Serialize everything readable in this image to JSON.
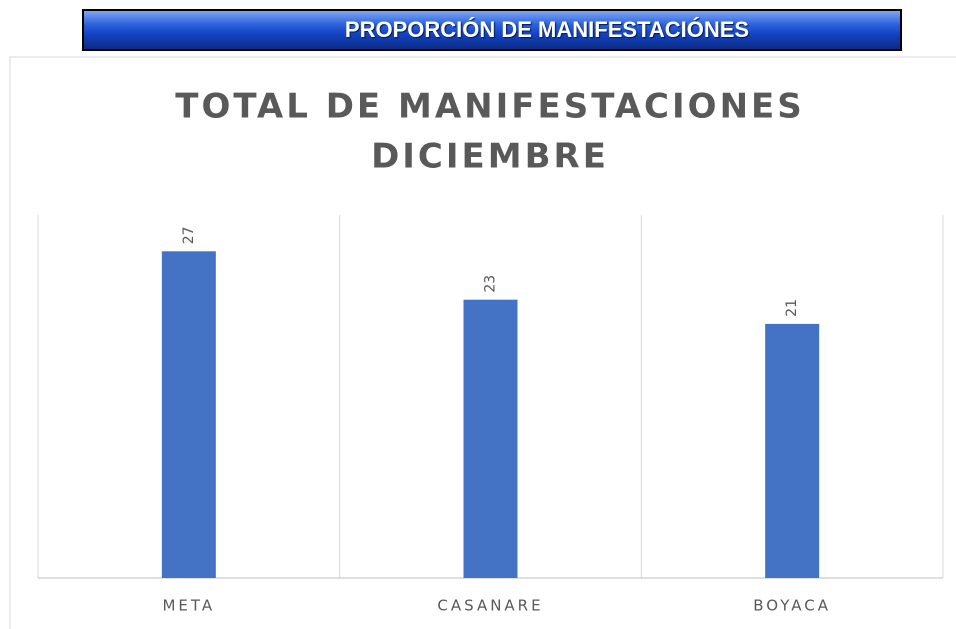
{
  "banner": "PROPORCIÓN DE MANIFESTACIÓNES",
  "chart_data": {
    "type": "bar",
    "title": [
      "TOTAL  DE MANIFESTACIONES",
      "DICIEMBRE"
    ],
    "categories": [
      "META",
      "CASANARE",
      "BOYACA"
    ],
    "values": [
      27,
      23,
      21
    ],
    "color": "#4472c4",
    "ylim": [
      0,
      30
    ]
  }
}
